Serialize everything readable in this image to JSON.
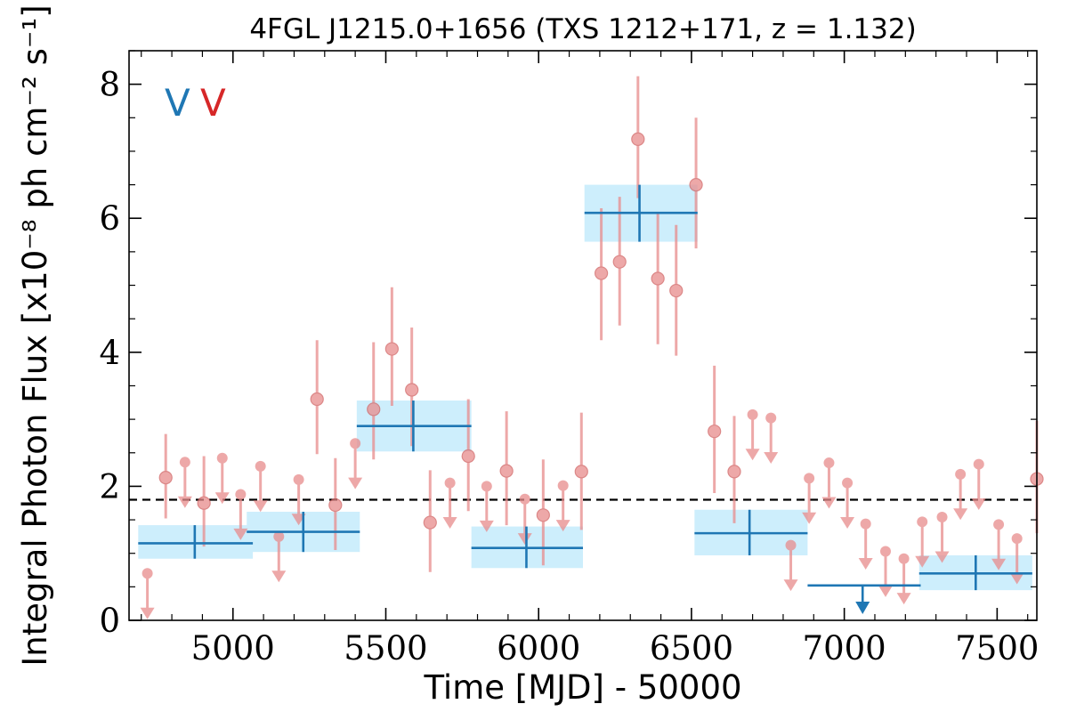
{
  "chart_data": {
    "type": "scatter",
    "title": "4FGL J1215.0+1656 (TXS 1212+171, z = 1.132)",
    "xlabel": "Time [MJD] - 50000",
    "ylabel": "Integral Photon Flux [x10⁻⁸ ph cm⁻² s⁻¹]",
    "xlim": [
      4660,
      7630
    ],
    "ylim": [
      0,
      8.5
    ],
    "x_ticks": [
      5000,
      5500,
      6000,
      6500,
      7000,
      7500
    ],
    "y_ticks": [
      0,
      2,
      4,
      6,
      8
    ],
    "grid": false,
    "corner_letters": [
      {
        "text": "V",
        "color": "#1f77b4"
      },
      {
        "text": "V",
        "color": "#d62728"
      }
    ],
    "reference_level": 1.8,
    "colors": {
      "bins": "#1f77b4",
      "bin_band": "#cdeefc",
      "points": "#e88c8c",
      "points_edge": "#d06060"
    },
    "series": [
      {
        "kind": "wide_bins",
        "points": [
          {
            "x": 4875,
            "x_lo": 4690,
            "x_hi": 5065,
            "y": 1.15,
            "y_lo": 0.92,
            "y_hi": 1.42
          },
          {
            "x": 5230,
            "x_lo": 5045,
            "x_hi": 5415,
            "y": 1.32,
            "y_lo": 1.02,
            "y_hi": 1.62
          },
          {
            "x": 5590,
            "x_lo": 5405,
            "x_hi": 5780,
            "y": 2.9,
            "y_lo": 2.52,
            "y_hi": 3.28
          },
          {
            "x": 5960,
            "x_lo": 5780,
            "x_hi": 6145,
            "y": 1.08,
            "y_lo": 0.78,
            "y_hi": 1.4
          },
          {
            "x": 6330,
            "x_lo": 6150,
            "x_hi": 6520,
            "y": 6.08,
            "y_lo": 5.65,
            "y_hi": 6.5
          },
          {
            "x": 6690,
            "x_lo": 6510,
            "x_hi": 6880,
            "y": 1.3,
            "y_lo": 0.97,
            "y_hi": 1.65
          },
          {
            "x": 7060,
            "x_lo": 6880,
            "x_hi": 7250,
            "y": 0.52,
            "upper_limit": true
          },
          {
            "x": 7430,
            "x_lo": 7245,
            "x_hi": 7615,
            "y": 0.7,
            "y_lo": 0.45,
            "y_hi": 0.97
          }
        ]
      },
      {
        "kind": "narrow_bins",
        "points": [
          {
            "x": 4720,
            "y": 0.7,
            "upper_limit": true
          },
          {
            "x": 4780,
            "y": 2.13,
            "y_lo": 1.52,
            "y_hi": 2.78
          },
          {
            "x": 4843,
            "y": 2.36,
            "upper_limit": true
          },
          {
            "x": 4905,
            "y": 1.75,
            "y_lo": 1.1,
            "y_hi": 2.45
          },
          {
            "x": 4965,
            "y": 2.42,
            "upper_limit": true
          },
          {
            "x": 5025,
            "y": 1.88,
            "upper_limit": true
          },
          {
            "x": 5090,
            "y": 2.3,
            "upper_limit": true
          },
          {
            "x": 5150,
            "y": 1.25,
            "upper_limit": true
          },
          {
            "x": 5215,
            "y": 2.1,
            "upper_limit": true
          },
          {
            "x": 5275,
            "y": 3.3,
            "y_lo": 2.48,
            "y_hi": 4.18
          },
          {
            "x": 5335,
            "y": 1.72,
            "y_lo": 1.05,
            "y_hi": 2.42
          },
          {
            "x": 5400,
            "y": 2.64,
            "upper_limit": true
          },
          {
            "x": 5460,
            "y": 3.15,
            "y_lo": 2.4,
            "y_hi": 4.15
          },
          {
            "x": 5520,
            "y": 4.05,
            "y_lo": 3.2,
            "y_hi": 4.97
          },
          {
            "x": 5585,
            "y": 3.44,
            "y_lo": 2.6,
            "y_hi": 4.37
          },
          {
            "x": 5645,
            "y": 1.46,
            "y_lo": 0.72,
            "y_hi": 2.24
          },
          {
            "x": 5710,
            "y": 2.05,
            "upper_limit": true
          },
          {
            "x": 5770,
            "y": 2.45,
            "y_lo": 1.63,
            "y_hi": 3.3
          },
          {
            "x": 5830,
            "y": 2.0,
            "upper_limit": true
          },
          {
            "x": 5895,
            "y": 2.23,
            "y_lo": 1.42,
            "y_hi": 3.12
          },
          {
            "x": 5955,
            "y": 1.81,
            "upper_limit": true
          },
          {
            "x": 6015,
            "y": 1.57,
            "y_lo": 0.82,
            "y_hi": 2.4
          },
          {
            "x": 6080,
            "y": 2.01,
            "upper_limit": true
          },
          {
            "x": 6140,
            "y": 2.22,
            "y_lo": 1.35,
            "y_hi": 3.1
          },
          {
            "x": 6205,
            "y": 5.18,
            "y_lo": 4.18,
            "y_hi": 6.15
          },
          {
            "x": 6265,
            "y": 5.35,
            "y_lo": 4.4,
            "y_hi": 6.32
          },
          {
            "x": 6325,
            "y": 7.18,
            "y_lo": 6.3,
            "y_hi": 8.12
          },
          {
            "x": 6390,
            "y": 5.1,
            "y_lo": 4.12,
            "y_hi": 6.08
          },
          {
            "x": 6450,
            "y": 4.92,
            "y_lo": 3.95,
            "y_hi": 5.9
          },
          {
            "x": 6515,
            "y": 6.5,
            "y_lo": 5.55,
            "y_hi": 7.5
          },
          {
            "x": 6575,
            "y": 2.82,
            "y_lo": 1.9,
            "y_hi": 3.8
          },
          {
            "x": 6640,
            "y": 2.22,
            "y_lo": 1.45,
            "y_hi": 3.05
          },
          {
            "x": 6700,
            "y": 3.07,
            "upper_limit": true
          },
          {
            "x": 6760,
            "y": 3.02,
            "upper_limit": true
          },
          {
            "x": 6825,
            "y": 1.12,
            "upper_limit": true
          },
          {
            "x": 6885,
            "y": 2.12,
            "upper_limit": true
          },
          {
            "x": 6950,
            "y": 2.35,
            "upper_limit": true
          },
          {
            "x": 7010,
            "y": 2.05,
            "upper_limit": true
          },
          {
            "x": 7070,
            "y": 1.44,
            "upper_limit": true
          },
          {
            "x": 7135,
            "y": 1.03,
            "upper_limit": true
          },
          {
            "x": 7195,
            "y": 0.92,
            "upper_limit": true
          },
          {
            "x": 7255,
            "y": 1.47,
            "upper_limit": true
          },
          {
            "x": 7320,
            "y": 1.54,
            "upper_limit": true
          },
          {
            "x": 7380,
            "y": 2.18,
            "upper_limit": true
          },
          {
            "x": 7440,
            "y": 2.33,
            "upper_limit": true
          },
          {
            "x": 7505,
            "y": 1.43,
            "upper_limit": true
          },
          {
            "x": 7565,
            "y": 1.22,
            "upper_limit": true
          },
          {
            "x": 7630,
            "y": 2.11,
            "y_lo": 1.3,
            "y_hi": 2.98
          }
        ]
      }
    ]
  }
}
